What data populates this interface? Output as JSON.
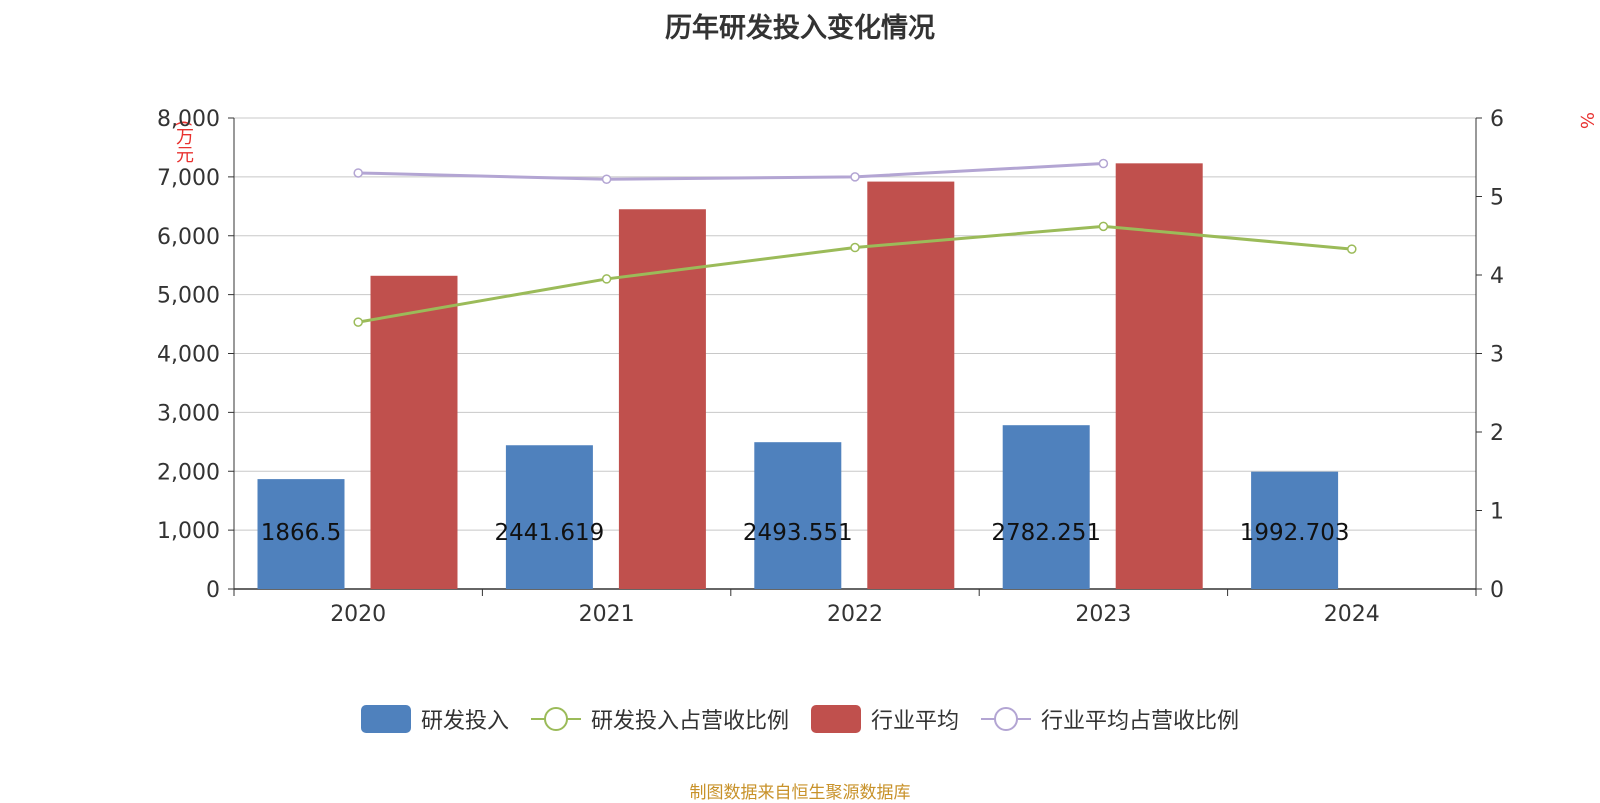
{
  "chart_data": {
    "type": "bar",
    "title": "历年研发投入变化情况",
    "categories": [
      "2020",
      "2021",
      "2022",
      "2023",
      "2024"
    ],
    "y_left": {
      "unit": "(万元",
      "ylim": [
        0,
        8000
      ],
      "ticks": [
        "0",
        "1,000",
        "2,000",
        "3,000",
        "4,000",
        "5,000",
        "6,000",
        "7,000",
        "8,000"
      ]
    },
    "y_right": {
      "unit": "%",
      "ylim": [
        0,
        6
      ],
      "ticks": [
        "0",
        "1",
        "2",
        "3",
        "4",
        "5",
        "6"
      ]
    },
    "grid": true,
    "legend_position": "bottom",
    "series": [
      {
        "name": "研发投入",
        "kind": "bar",
        "axis": "left",
        "color": "#4f81bd",
        "values": [
          1866.5,
          2441.619,
          2493.551,
          2782.251,
          1992.703
        ],
        "labels": [
          "1866.5",
          "2441.619",
          "2493.551",
          "2782.251",
          "1992.703"
        ]
      },
      {
        "name": "研发投入占营收比例",
        "kind": "line",
        "axis": "right",
        "color": "#9bbb59",
        "values": [
          3.4,
          3.95,
          4.35,
          4.62,
          4.33
        ]
      },
      {
        "name": "行业平均",
        "kind": "bar",
        "axis": "left",
        "color": "#c0504d",
        "values": [
          5320,
          6450,
          6920,
          7230,
          null
        ]
      },
      {
        "name": "行业平均占营收比例",
        "kind": "line",
        "axis": "right",
        "color": "#b3a5d3",
        "values": [
          5.3,
          5.22,
          5.25,
          5.42,
          null
        ]
      }
    ]
  },
  "source_note": "制图数据来自恒生聚源数据库"
}
